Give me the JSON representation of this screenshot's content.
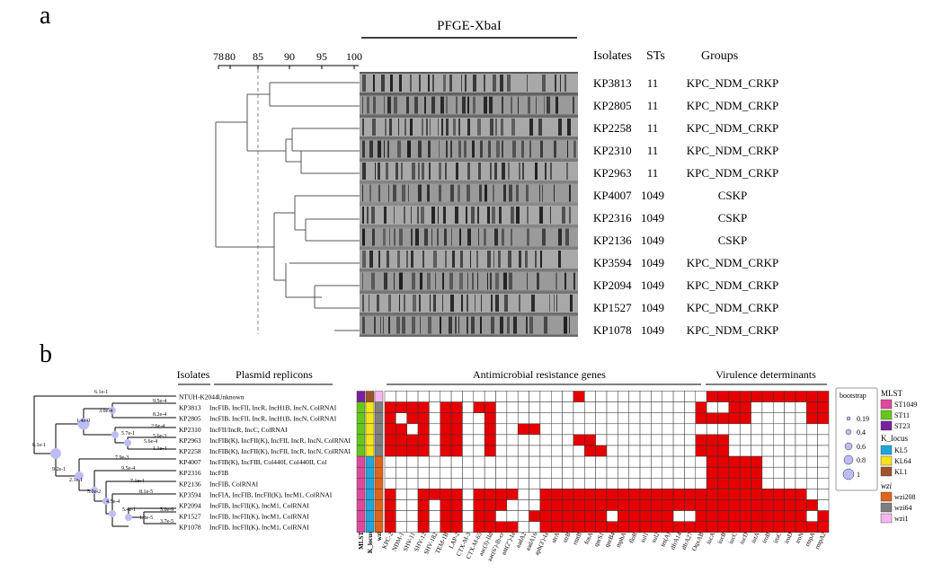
{
  "panel_a": {
    "label": "a",
    "pfge_title": "PFGE-XbaI",
    "scale_ticks": [
      "78",
      "80",
      "85",
      "90",
      "95",
      "100"
    ],
    "headers": {
      "isolates": "Isolates",
      "sts": "STs",
      "groups": "Groups"
    },
    "rows": [
      {
        "isolate": "KP3813",
        "st": "11",
        "group": "KPC_NDM_CRKP"
      },
      {
        "isolate": "KP2805",
        "st": "11",
        "group": "KPC_NDM_CRKP"
      },
      {
        "isolate": "KP2258",
        "st": "11",
        "group": "KPC_NDM_CRKP"
      },
      {
        "isolate": "KP2310",
        "st": "11",
        "group": "KPC_NDM_CRKP"
      },
      {
        "isolate": "KP2963",
        "st": "11",
        "group": "KPC_NDM_CRKP"
      },
      {
        "isolate": "KP4007",
        "st": "1049",
        "group": "CSKP"
      },
      {
        "isolate": "KP2316",
        "st": "1049",
        "group": "CSKP"
      },
      {
        "isolate": "KP2136",
        "st": "1049",
        "group": "CSKP"
      },
      {
        "isolate": "KP3594",
        "st": "1049",
        "group": "KPC_NDM_CRKP"
      },
      {
        "isolate": "KP2094",
        "st": "1049",
        "group": "KPC_NDM_CRKP"
      },
      {
        "isolate": "KP1527",
        "st": "1049",
        "group": "KPC_NDM_CRKP"
      },
      {
        "isolate": "KP1078",
        "st": "1049",
        "group": "KPC_NDM_CRKP"
      }
    ]
  },
  "panel_b": {
    "label": "b",
    "section_headers": {
      "isolates": "Isolates",
      "plasmid": "Plasmid replicons",
      "amr": "Antimicrobial resistance genes",
      "virulence": "Virulence determinants"
    },
    "tree_labels": [
      "6.1e-1",
      "3.0e-4",
      "9.5e-4",
      "8.2e-4",
      "1.4e-0",
      "5.7e-1",
      "2.6e-4",
      "5.6e-3",
      "5.6e-4",
      "1.1e-4",
      "8.1e-1",
      "7.9e-3",
      "9.2e-1",
      "9.5e-4",
      "7.1e-4",
      "2.1e-1",
      "8.1e-5",
      "5.0e-2",
      "4.5e-4",
      "5.4e-1",
      "5.0e-9",
      "1.8e-5",
      "3.7e-5"
    ],
    "rows": [
      {
        "isolate": "NTUH-K2044",
        "replicons": "Unknown",
        "mlst": "ST23",
        "kl": "KL1",
        "wzi": "wzi1"
      },
      {
        "isolate": "KP3813",
        "replicons": "IncFIB, IncFII, IncR, IncH1B, IncN, ColRNAI",
        "mlst": "ST11",
        "kl": "KL64",
        "wzi": "wzi64"
      },
      {
        "isolate": "KP2805",
        "replicons": "IncFIB, IncFII, IncR, IncH1B, IncN, ColRNAI",
        "mlst": "ST11",
        "kl": "KL64",
        "wzi": "wzi64"
      },
      {
        "isolate": "KP2310",
        "replicons": "IncFII/IncR, IncC, ColRNAI",
        "mlst": "ST11",
        "kl": "KL64",
        "wzi": "wzi64"
      },
      {
        "isolate": "KP2963",
        "replicons": "IncFIB(K), IncFII(K), IncFII, IncR, IncN, ColRNAI",
        "mlst": "ST11",
        "kl": "KL64",
        "wzi": "wzi64"
      },
      {
        "isolate": "KP2258",
        "replicons": "IncFIB(K), IncFII(K), IncFII, IncR, IncN, ColRNAI",
        "mlst": "ST11",
        "kl": "KL64",
        "wzi": "wzi64"
      },
      {
        "isolate": "KP4007",
        "replicons": "IncFIB(K), IncFIB, Col440I, Col440II, Col",
        "mlst": "ST1049",
        "kl": "KL5",
        "wzi": "wzi208"
      },
      {
        "isolate": "KP2316",
        "replicons": "IncFIB",
        "mlst": "ST1049",
        "kl": "KL5",
        "wzi": "wzi208"
      },
      {
        "isolate": "KP2136",
        "replicons": "IncFIB, ColRNAI",
        "mlst": "ST1049",
        "kl": "KL5",
        "wzi": "wzi208"
      },
      {
        "isolate": "KP3594",
        "replicons": "IncFIA, IncFIB, IncFII(K), IncM1, ColRNAI",
        "mlst": "ST1049",
        "kl": "KL5",
        "wzi": "wzi208"
      },
      {
        "isolate": "KP2094",
        "replicons": "IncFIB, IncFII(K), IncM1, ColRNAI",
        "mlst": "ST1049",
        "kl": "KL5",
        "wzi": "wzi208"
      },
      {
        "isolate": "KP1527",
        "replicons": "IncFIB, IncFII(K), IncM1, ColRNAI",
        "mlst": "ST1049",
        "kl": "KL5",
        "wzi": "wzi208"
      },
      {
        "isolate": "KP1078",
        "replicons": "IncFIB, IncFII(K), IncM1, ColRNAI",
        "mlst": "ST1049",
        "kl": "KL5",
        "wzi": "wzi208"
      }
    ],
    "meta_columns": [
      "MLST",
      "K_locus",
      "wzi"
    ],
    "genes": [
      "KPC-2",
      "NDM-1",
      "SHV-11",
      "SHV-12",
      "SHV-182",
      "TEM-1B",
      "LAP-2",
      "CTX-M-3",
      "CTX-M-65",
      "aac(3)-IId",
      "aac(6')-Ib-cr",
      "ant(2'')-Ia",
      "aadA2",
      "aadA16",
      "aph(3')-Ia",
      "strA",
      "strB",
      "rmtB",
      "fosA",
      "qnrS1",
      "qnrB4",
      "mphA",
      "floR",
      "sul1",
      "sul2",
      "tet(A)",
      "dfrA14",
      "dfrA27",
      "OqxAB",
      "iucA",
      "iucB",
      "iucC",
      "iucD",
      "iutA",
      "iroB",
      "iroC",
      "iroD",
      "iroN",
      "rmpA",
      "rmpA2"
    ],
    "matrix": [
      "0000000000000000010000000000011111111111",
      "1111011011000000000000000000100110000011",
      "1011011001000000000000000000111110000011",
      "1101011001001100000000000000000000000000",
      "1111011001000000011000000000111000000000",
      "1111011001000000001100000000111000000000",
      "0000000000000000000000000000011111000000",
      "0000000000000000000000000000011111000000",
      "0000000000000000000000000000011111000000",
      "1001111011110011111111111111111111111100",
      "1001011011100011111111111111111111111110",
      "1001011011000111111101111100111111111101",
      "1001011011110011111111111111111111111111"
    ],
    "legend": {
      "bootstrap_title": "bootstrap",
      "bootstrap_values": [
        "0.19",
        "0.4",
        "0.6",
        "0.8",
        "1"
      ],
      "mlst_title": "MLST",
      "mlst": [
        {
          "label": "ST1049",
          "color": "#e0489b"
        },
        {
          "label": "ST11",
          "color": "#66c61c"
        },
        {
          "label": "ST23",
          "color": "#7a1fa0"
        }
      ],
      "kl_title": "K_locus",
      "kl": [
        {
          "label": "KL5",
          "color": "#22a6d9"
        },
        {
          "label": "KL64",
          "color": "#f4e31c"
        },
        {
          "label": "KL1",
          "color": "#a0522d"
        }
      ],
      "wzi_title": "wzi",
      "wzi": [
        {
          "label": "wzi208",
          "color": "#e0651c"
        },
        {
          "label": "wzi64",
          "color": "#7f7f7f"
        },
        {
          "label": "wzi1",
          "color": "#f7b6f0"
        }
      ]
    },
    "colors": {
      "present": "#e60000",
      "absent": "#ffffff",
      "grid": "#333333",
      "node": "#bdbdf5"
    }
  }
}
